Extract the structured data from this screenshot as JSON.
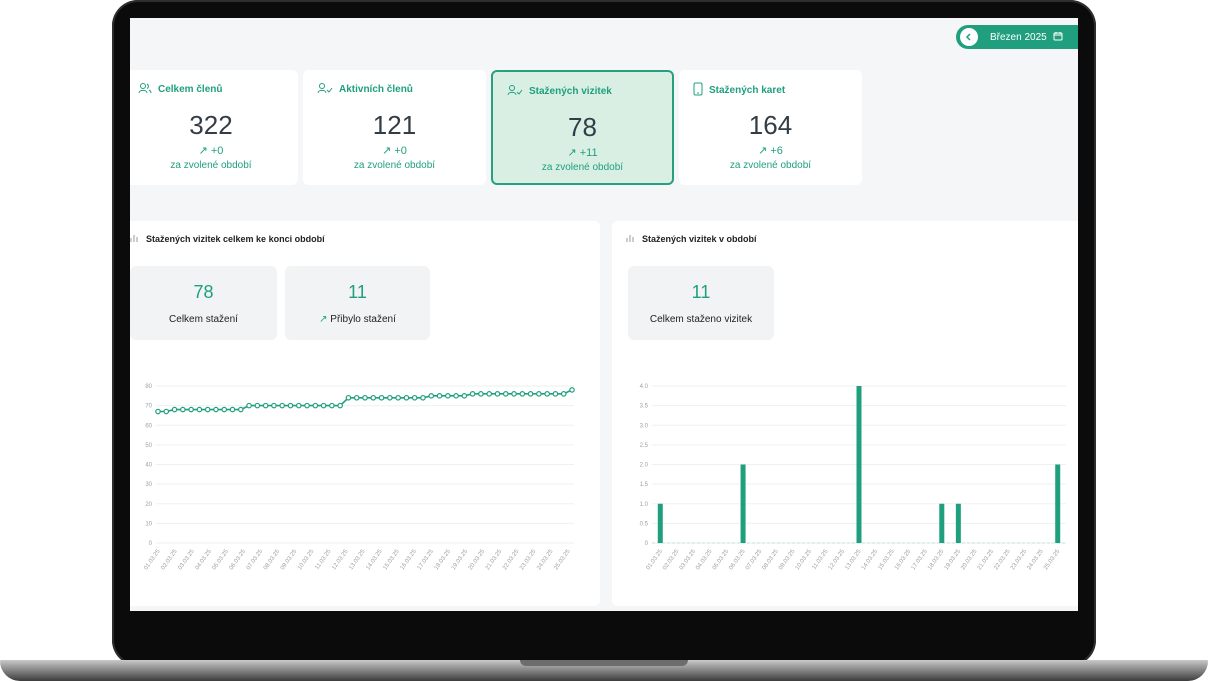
{
  "header": {
    "period_label": "Březen 2025"
  },
  "stats": [
    {
      "title": "Celkem členů",
      "value": "322",
      "delta": "+0",
      "period": "za zvolené období",
      "icon": "users-icon"
    },
    {
      "title": "Aktivních členů",
      "value": "121",
      "delta": "+0",
      "period": "za zvolené období",
      "icon": "users-check-icon"
    },
    {
      "title": "Stažených vizitek",
      "value": "78",
      "delta": "+11",
      "period": "za zvolené období",
      "icon": "users-download-icon"
    },
    {
      "title": "Stažených karet",
      "value": "164",
      "delta": "+6",
      "period": "za zvolené období",
      "icon": "phone-icon"
    }
  ],
  "left_panel": {
    "title": "Stažených vizitek celkem ke konci období",
    "kpis": [
      {
        "value": "78",
        "label": "Celkem stažení"
      },
      {
        "value": "11",
        "label": "Přibylo stažení"
      }
    ]
  },
  "right_panel": {
    "title": "Stažených vizitek v období",
    "kpis": [
      {
        "value": "11",
        "label": "Celkem staženo vizitek"
      }
    ]
  },
  "chart_data": [
    {
      "type": "line",
      "title": "Stažených vizitek celkem ke konci období",
      "ylim": [
        0,
        80
      ],
      "yticks": [
        0,
        10,
        20,
        30,
        40,
        50,
        60,
        70,
        80
      ],
      "xticks": [
        "01.03.25",
        "02.03.25",
        "03.03.25",
        "04.03.25",
        "05.03.25",
        "06.03.25",
        "07.03.25",
        "08.03.25",
        "09.03.25",
        "10.03.25",
        "11.03.25",
        "12.03.25",
        "13.03.25",
        "14.03.25",
        "15.03.25",
        "16.03.25",
        "17.03.25",
        "18.03.25",
        "19.03.25",
        "20.03.25",
        "21.03.25",
        "22.03.25",
        "23.03.25",
        "24.03.25",
        "25.03.25"
      ],
      "values": [
        67,
        67,
        68,
        68,
        68,
        68,
        68,
        68,
        68,
        68,
        68,
        70,
        70,
        70,
        70,
        70,
        70,
        70,
        70,
        70,
        70,
        70,
        70,
        74,
        74,
        74,
        74,
        74,
        74,
        74,
        74,
        74,
        74,
        75,
        75,
        75,
        75,
        75,
        76,
        76,
        76,
        76,
        76,
        76,
        76,
        76,
        76,
        76,
        76,
        76,
        78
      ],
      "color": "#1f9f7e",
      "grid": true
    },
    {
      "type": "bar",
      "title": "Stažených vizitek v období",
      "ylim": [
        0,
        4
      ],
      "yticks": [
        "0",
        "0.5",
        "1.0",
        "1.5",
        "2.0",
        "2.5",
        "3.0",
        "3.5",
        "4.0"
      ],
      "categories": [
        "01.03.25",
        "02.03.25",
        "03.03.25",
        "04.03.25",
        "05.03.25",
        "06.03.25",
        "07.03.25",
        "08.03.25",
        "09.03.25",
        "10.03.25",
        "11.03.25",
        "12.03.25",
        "13.03.25",
        "14.03.25",
        "15.03.25",
        "16.03.25",
        "17.03.25",
        "18.03.25",
        "19.03.25",
        "20.03.25",
        "21.03.25",
        "22.03.25",
        "23.03.25",
        "24.03.25",
        "25.03.25"
      ],
      "values": [
        1,
        0,
        0,
        0,
        0,
        2,
        0,
        0,
        0,
        0,
        0,
        0,
        4,
        0,
        0,
        0,
        0,
        1,
        1,
        0,
        0,
        0,
        0,
        0,
        2
      ],
      "color": "#1f9f7e",
      "grid": true
    }
  ]
}
